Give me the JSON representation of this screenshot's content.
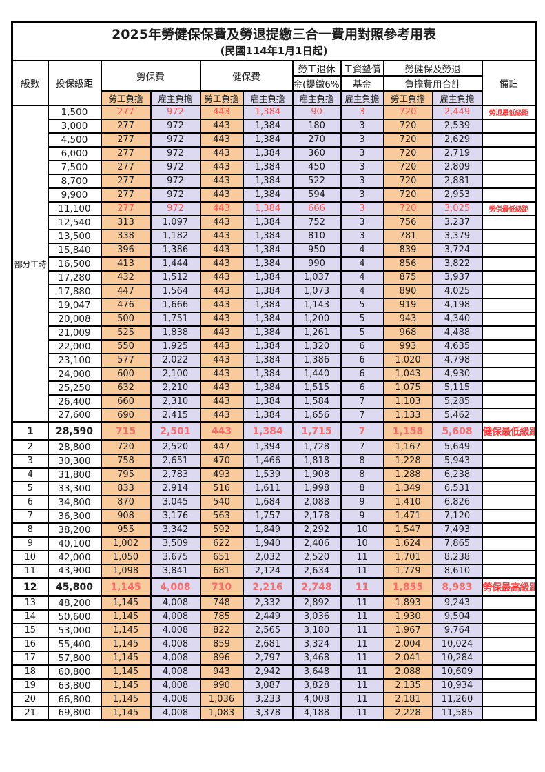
{
  "title": "2025年勞健保保費及勞退提繳三合一費用對照參考用表",
  "subtitle": "(民國114年1月1日起)",
  "colors": {
    "employee_column_bg": "#F9CB9C",
    "employer_column_bg": "#DDD9F0",
    "highlight_text": "#FF5252",
    "remark_text": "#FF4040",
    "border": "#000000"
  },
  "header": {
    "level": "級數",
    "bracket": "投保級距",
    "labor_insurance": "勞保費",
    "health_insurance": "健保費",
    "pension_line1": "勞工退休",
    "pension_line2": "金(提繳6%)",
    "wage_fund_line1": "工資墊償",
    "wage_fund_line2": "基金",
    "total_line1": "勞健保及勞退",
    "total_line2": "負擔費用合計",
    "remark": "備註",
    "employee": "勞工負擔",
    "employer": "雇主負擔"
  },
  "part_time_label": "部分工時",
  "rows": [
    {
      "level": "",
      "bracket": "1,500",
      "values": [
        "277",
        "972",
        "443",
        "1,384",
        "90",
        "3",
        "720",
        "2,449"
      ],
      "remark": "勞退最低級距",
      "red": true,
      "bold": false
    },
    {
      "level": "",
      "bracket": "3,000",
      "values": [
        "277",
        "972",
        "443",
        "1,384",
        "180",
        "3",
        "720",
        "2,539"
      ],
      "remark": "",
      "red": false,
      "bold": false
    },
    {
      "level": "",
      "bracket": "4,500",
      "values": [
        "277",
        "972",
        "443",
        "1,384",
        "270",
        "3",
        "720",
        "2,629"
      ],
      "remark": "",
      "red": false,
      "bold": false
    },
    {
      "level": "",
      "bracket": "6,000",
      "values": [
        "277",
        "972",
        "443",
        "1,384",
        "360",
        "3",
        "720",
        "2,719"
      ],
      "remark": "",
      "red": false,
      "bold": false
    },
    {
      "level": "",
      "bracket": "7,500",
      "values": [
        "277",
        "972",
        "443",
        "1,384",
        "450",
        "3",
        "720",
        "2,809"
      ],
      "remark": "",
      "red": false,
      "bold": false
    },
    {
      "level": "",
      "bracket": "8,700",
      "values": [
        "277",
        "972",
        "443",
        "1,384",
        "522",
        "3",
        "720",
        "2,881"
      ],
      "remark": "",
      "red": false,
      "bold": false
    },
    {
      "level": "",
      "bracket": "9,900",
      "values": [
        "277",
        "972",
        "443",
        "1,384",
        "594",
        "3",
        "720",
        "2,953"
      ],
      "remark": "",
      "red": false,
      "bold": false
    },
    {
      "level": "",
      "bracket": "11,100",
      "values": [
        "277",
        "972",
        "443",
        "1,384",
        "666",
        "3",
        "720",
        "3,025"
      ],
      "remark": "勞保最低級距",
      "red": true,
      "bold": false
    },
    {
      "level": "",
      "bracket": "12,540",
      "values": [
        "313",
        "1,097",
        "443",
        "1,384",
        "752",
        "3",
        "756",
        "3,237"
      ],
      "remark": "",
      "red": false,
      "bold": false
    },
    {
      "level": "",
      "bracket": "13,500",
      "values": [
        "338",
        "1,182",
        "443",
        "1,384",
        "810",
        "3",
        "781",
        "3,379"
      ],
      "remark": "",
      "red": false,
      "bold": false
    },
    {
      "level": "",
      "bracket": "15,840",
      "values": [
        "396",
        "1,386",
        "443",
        "1,384",
        "950",
        "4",
        "839",
        "3,724"
      ],
      "remark": "",
      "red": false,
      "bold": false
    },
    {
      "level": "",
      "bracket": "16,500",
      "values": [
        "413",
        "1,444",
        "443",
        "1,384",
        "990",
        "4",
        "856",
        "3,822"
      ],
      "remark": "",
      "red": false,
      "bold": false
    },
    {
      "level": "",
      "bracket": "17,280",
      "values": [
        "432",
        "1,512",
        "443",
        "1,384",
        "1,037",
        "4",
        "875",
        "3,937"
      ],
      "remark": "",
      "red": false,
      "bold": false
    },
    {
      "level": "",
      "bracket": "17,880",
      "values": [
        "447",
        "1,564",
        "443",
        "1,384",
        "1,073",
        "4",
        "890",
        "4,025"
      ],
      "remark": "",
      "red": false,
      "bold": false
    },
    {
      "level": "",
      "bracket": "19,047",
      "values": [
        "476",
        "1,666",
        "443",
        "1,384",
        "1,143",
        "5",
        "919",
        "4,198"
      ],
      "remark": "",
      "red": false,
      "bold": false
    },
    {
      "level": "",
      "bracket": "20,008",
      "values": [
        "500",
        "1,751",
        "443",
        "1,384",
        "1,200",
        "5",
        "943",
        "4,340"
      ],
      "remark": "",
      "red": false,
      "bold": false
    },
    {
      "level": "",
      "bracket": "21,009",
      "values": [
        "525",
        "1,838",
        "443",
        "1,384",
        "1,261",
        "5",
        "968",
        "4,488"
      ],
      "remark": "",
      "red": false,
      "bold": false
    },
    {
      "level": "",
      "bracket": "22,000",
      "values": [
        "550",
        "1,925",
        "443",
        "1,384",
        "1,320",
        "6",
        "993",
        "4,635"
      ],
      "remark": "",
      "red": false,
      "bold": false
    },
    {
      "level": "",
      "bracket": "23,100",
      "values": [
        "577",
        "2,022",
        "443",
        "1,384",
        "1,386",
        "6",
        "1,020",
        "4,798"
      ],
      "remark": "",
      "red": false,
      "bold": false
    },
    {
      "level": "",
      "bracket": "24,000",
      "values": [
        "600",
        "2,100",
        "443",
        "1,384",
        "1,440",
        "6",
        "1,043",
        "4,930"
      ],
      "remark": "",
      "red": false,
      "bold": false
    },
    {
      "level": "",
      "bracket": "25,250",
      "values": [
        "632",
        "2,210",
        "443",
        "1,384",
        "1,515",
        "6",
        "1,075",
        "5,115"
      ],
      "remark": "",
      "red": false,
      "bold": false
    },
    {
      "level": "",
      "bracket": "26,400",
      "values": [
        "660",
        "2,310",
        "443",
        "1,384",
        "1,584",
        "7",
        "1,103",
        "5,285"
      ],
      "remark": "",
      "red": false,
      "bold": false
    },
    {
      "level": "",
      "bracket": "27,600",
      "values": [
        "690",
        "2,415",
        "443",
        "1,384",
        "1,656",
        "7",
        "1,133",
        "5,462"
      ],
      "remark": "",
      "red": false,
      "bold": false
    },
    {
      "level": "1",
      "bracket": "28,590",
      "values": [
        "715",
        "2,501",
        "443",
        "1,384",
        "1,715",
        "7",
        "1,158",
        "5,608"
      ],
      "remark": "健保最低級距",
      "red": true,
      "bold": true
    },
    {
      "level": "2",
      "bracket": "28,800",
      "values": [
        "720",
        "2,520",
        "447",
        "1,394",
        "1,728",
        "7",
        "1,167",
        "5,649"
      ],
      "remark": "",
      "red": false,
      "bold": false
    },
    {
      "level": "3",
      "bracket": "30,300",
      "values": [
        "758",
        "2,651",
        "470",
        "1,466",
        "1,818",
        "8",
        "1,228",
        "5,943"
      ],
      "remark": "",
      "red": false,
      "bold": false
    },
    {
      "level": "4",
      "bracket": "31,800",
      "values": [
        "795",
        "2,783",
        "493",
        "1,539",
        "1,908",
        "8",
        "1,288",
        "6,238"
      ],
      "remark": "",
      "red": false,
      "bold": false
    },
    {
      "level": "5",
      "bracket": "33,300",
      "values": [
        "833",
        "2,914",
        "516",
        "1,611",
        "1,998",
        "8",
        "1,349",
        "6,531"
      ],
      "remark": "",
      "red": false,
      "bold": false
    },
    {
      "level": "6",
      "bracket": "34,800",
      "values": [
        "870",
        "3,045",
        "540",
        "1,684",
        "2,088",
        "9",
        "1,410",
        "6,826"
      ],
      "remark": "",
      "red": false,
      "bold": false
    },
    {
      "level": "7",
      "bracket": "36,300",
      "values": [
        "908",
        "3,176",
        "563",
        "1,757",
        "2,178",
        "9",
        "1,471",
        "7,120"
      ],
      "remark": "",
      "red": false,
      "bold": false
    },
    {
      "level": "8",
      "bracket": "38,200",
      "values": [
        "955",
        "3,342",
        "592",
        "1,849",
        "2,292",
        "10",
        "1,547",
        "7,493"
      ],
      "remark": "",
      "red": false,
      "bold": false
    },
    {
      "level": "9",
      "bracket": "40,100",
      "values": [
        "1,002",
        "3,509",
        "622",
        "1,940",
        "2,406",
        "10",
        "1,624",
        "7,865"
      ],
      "remark": "",
      "red": false,
      "bold": false
    },
    {
      "level": "10",
      "bracket": "42,000",
      "values": [
        "1,050",
        "3,675",
        "651",
        "2,032",
        "2,520",
        "11",
        "1,701",
        "8,238"
      ],
      "remark": "",
      "red": false,
      "bold": false
    },
    {
      "level": "11",
      "bracket": "43,900",
      "values": [
        "1,098",
        "3,841",
        "681",
        "2,124",
        "2,634",
        "11",
        "1,779",
        "8,610"
      ],
      "remark": "",
      "red": false,
      "bold": false
    },
    {
      "level": "12",
      "bracket": "45,800",
      "values": [
        "1,145",
        "4,008",
        "710",
        "2,216",
        "2,748",
        "11",
        "1,855",
        "8,983"
      ],
      "remark": "勞保最高級距",
      "red": true,
      "bold": true
    },
    {
      "level": "13",
      "bracket": "48,200",
      "values": [
        "1,145",
        "4,008",
        "748",
        "2,332",
        "2,892",
        "11",
        "1,893",
        "9,243"
      ],
      "remark": "",
      "red": false,
      "bold": false
    },
    {
      "level": "14",
      "bracket": "50,600",
      "values": [
        "1,145",
        "4,008",
        "785",
        "2,449",
        "3,036",
        "11",
        "1,930",
        "9,504"
      ],
      "remark": "",
      "red": false,
      "bold": false
    },
    {
      "level": "15",
      "bracket": "53,000",
      "values": [
        "1,145",
        "4,008",
        "822",
        "2,565",
        "3,180",
        "11",
        "1,967",
        "9,764"
      ],
      "remark": "",
      "red": false,
      "bold": false
    },
    {
      "level": "16",
      "bracket": "55,400",
      "values": [
        "1,145",
        "4,008",
        "859",
        "2,681",
        "3,324",
        "11",
        "2,004",
        "10,024"
      ],
      "remark": "",
      "red": false,
      "bold": false
    },
    {
      "level": "17",
      "bracket": "57,800",
      "values": [
        "1,145",
        "4,008",
        "896",
        "2,797",
        "3,468",
        "11",
        "2,041",
        "10,284"
      ],
      "remark": "",
      "red": false,
      "bold": false
    },
    {
      "level": "18",
      "bracket": "60,800",
      "values": [
        "1,145",
        "4,008",
        "943",
        "2,942",
        "3,648",
        "11",
        "2,088",
        "10,609"
      ],
      "remark": "",
      "red": false,
      "bold": false
    },
    {
      "level": "19",
      "bracket": "63,800",
      "values": [
        "1,145",
        "4,008",
        "990",
        "3,087",
        "3,828",
        "11",
        "2,135",
        "10,934"
      ],
      "remark": "",
      "red": false,
      "bold": false
    },
    {
      "level": "20",
      "bracket": "66,800",
      "values": [
        "1,145",
        "4,008",
        "1,036",
        "3,233",
        "4,008",
        "11",
        "2,181",
        "11,260"
      ],
      "remark": "",
      "red": false,
      "bold": false
    },
    {
      "level": "21",
      "bracket": "69,800",
      "values": [
        "1,145",
        "4,008",
        "1,083",
        "3,378",
        "4,188",
        "11",
        "2,228",
        "11,585"
      ],
      "remark": "",
      "red": false,
      "bold": false
    }
  ]
}
